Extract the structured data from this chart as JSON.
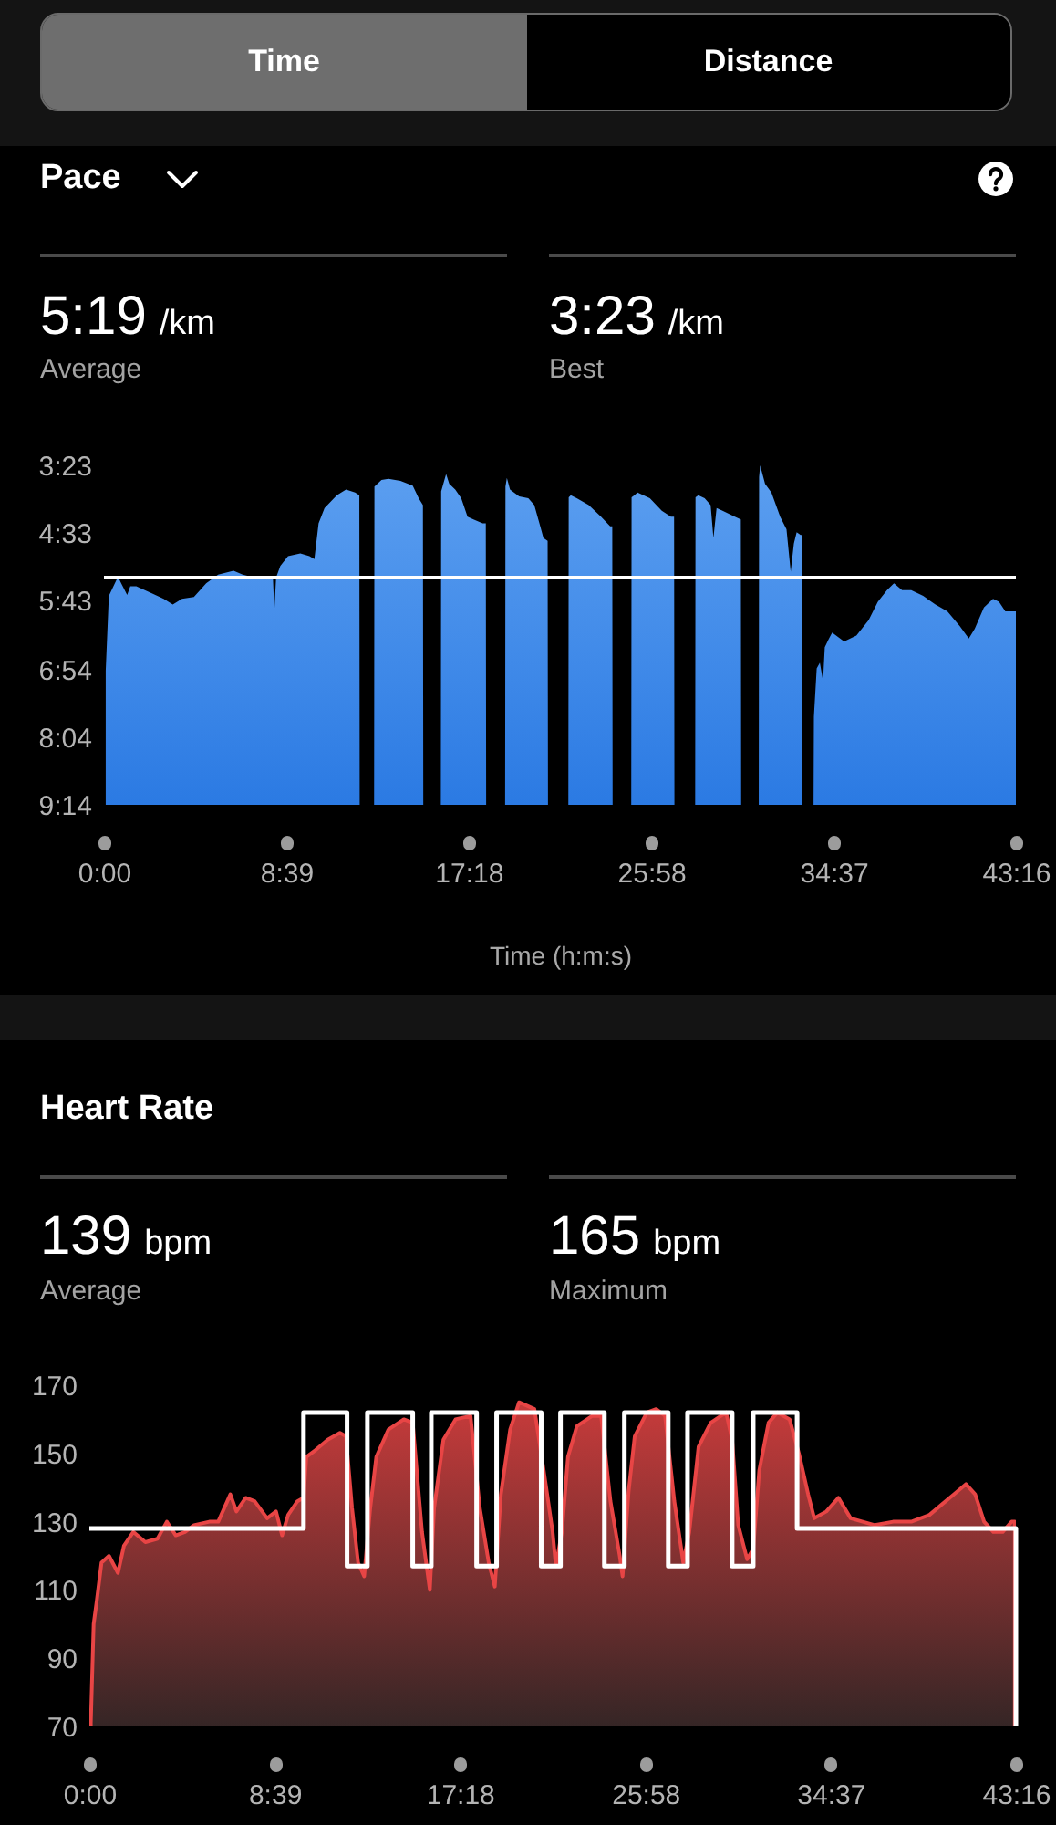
{
  "chart_data": [
    {
      "type": "other",
      "annotations": [
        "Time",
        "Distance"
      ]
    },
    {
      "type": "area",
      "title": "Pace",
      "xlabel": "Time (h:m:s)",
      "annotations": [
        "5:19",
        "/km",
        "Average",
        "3:23",
        "/km",
        "Best"
      ],
      "x": [
        5,
        5,
        14,
        40,
        49,
        66,
        75,
        92,
        135,
        170,
        196,
        222,
        256,
        291,
        325,
        369,
        395,
        429,
        464,
        481,
        485,
        490,
        502,
        524,
        559,
        585,
        599,
        611,
        628,
        663,
        689,
        715,
        727,
        728,
        769,
        770,
        790,
        810,
        844,
        879,
        896,
        908,
        909,
        959,
        960,
        974,
        983,
        1000,
        1017,
        1035,
        1052,
        1078,
        1087,
        1088,
        1142,
        1143,
        1147,
        1156,
        1182,
        1208,
        1225,
        1242,
        1251,
        1263,
        1264,
        1322,
        1323,
        1329,
        1346,
        1380,
        1415,
        1441,
        1447,
        1448,
        1501,
        1502,
        1510,
        1519,
        1554,
        1588,
        1614,
        1623,
        1624,
        1683,
        1684,
        1692,
        1710,
        1727,
        1735,
        1744,
        1761,
        1796,
        1813,
        1814,
        1864,
        1865,
        1868,
        1882,
        1900,
        1925,
        1943,
        1955,
        1964,
        1972,
        1983,
        1986,
        1987,
        2020,
        2021,
        2029,
        2038,
        2047,
        2052,
        2064,
        2073,
        2107,
        2142,
        2177,
        2203,
        2229,
        2249,
        2272,
        2298,
        2332,
        2367,
        2401,
        2436,
        2462,
        2479,
        2505,
        2531,
        2548,
        2566,
        2596,
        2596
      ],
      "values": [
        554,
        415,
        338,
        318,
        325,
        337,
        328,
        328,
        335,
        341,
        347,
        341,
        339,
        325,
        316,
        312,
        316,
        319,
        318,
        319,
        354,
        319,
        307,
        297,
        294,
        297,
        300,
        263,
        247,
        234,
        228,
        231,
        234,
        554,
        554,
        225,
        218,
        217,
        219,
        224,
        237,
        244,
        554,
        554,
        230,
        212,
        222,
        228,
        237,
        256,
        259,
        263,
        263,
        554,
        554,
        225,
        216,
        228,
        235,
        237,
        244,
        266,
        278,
        281,
        554,
        554,
        236,
        234,
        237,
        244,
        256,
        266,
        266,
        554,
        554,
        236,
        234,
        231,
        237,
        250,
        256,
        256,
        554,
        554,
        236,
        234,
        237,
        244,
        278,
        247,
        250,
        256,
        259,
        554,
        554,
        215,
        203,
        222,
        231,
        256,
        269,
        313,
        284,
        272,
        275,
        275,
        554,
        554,
        463,
        413,
        407,
        426,
        391,
        382,
        376,
        385,
        379,
        363,
        344,
        332,
        325,
        332,
        332,
        338,
        347,
        354,
        369,
        382,
        372,
        350,
        341,
        344,
        354,
        354,
        554
      ],
      "color": "#3d8ded",
      "xlim": [
        0,
        2596
      ],
      "ylim": [
        554,
        203
      ],
      "xticks": [
        {
          "value": 0,
          "label": "0:00"
        },
        {
          "value": 519,
          "label": "8:39"
        },
        {
          "value": 1038,
          "label": "17:18"
        },
        {
          "value": 1558,
          "label": "25:58"
        },
        {
          "value": 2077,
          "label": "34:37"
        },
        {
          "value": 2596,
          "label": "43:16"
        }
      ],
      "yticks": [
        {
          "value": 203,
          "label": "3:23"
        },
        {
          "value": 273,
          "label": "4:33"
        },
        {
          "value": 343,
          "label": "5:43"
        },
        {
          "value": 414,
          "label": "6:54"
        },
        {
          "value": 484,
          "label": "8:04"
        },
        {
          "value": 554,
          "label": "9:14"
        }
      ],
      "ref_lines": [
        {
          "axis": "y",
          "value": 319,
          "color": "#ffffff"
        }
      ],
      "grid": false
    },
    {
      "type": "area",
      "title": "Heart Rate",
      "annotations": [
        "139",
        "bpm",
        "Average",
        "165",
        "bpm",
        "Maximum"
      ],
      "series": [
        {
          "type": "area",
          "color": "#e84545",
          "x": [
            4,
            12,
            21,
            34,
            55,
            80,
            97,
            123,
            157,
            191,
            217,
            242,
            268,
            293,
            336,
            361,
            395,
            412,
            438,
            463,
            498,
            523,
            540,
            557,
            583,
            600,
            608,
            634,
            668,
            702,
            719,
            736,
            753,
            770,
            787,
            804,
            838,
            881,
            906,
            932,
            954,
            966,
            992,
            1026,
            1068,
            1094,
            1119,
            1136,
            1153,
            1179,
            1204,
            1247,
            1273,
            1298,
            1307,
            1324,
            1341,
            1366,
            1409,
            1434,
            1460,
            1486,
            1494,
            1511,
            1528,
            1562,
            1588,
            1613,
            1639,
            1664,
            1681,
            1707,
            1741,
            1784,
            1801,
            1818,
            1843,
            1860,
            1877,
            1903,
            1928,
            1962,
            1988,
            2014,
            2031,
            2065,
            2099,
            2133,
            2167,
            2201,
            2252,
            2303,
            2354,
            2388,
            2422,
            2456,
            2482,
            2507,
            2533,
            2559,
            2584,
            2593
          ],
          "values": [
            71,
            100,
            107,
            118,
            120,
            115,
            123,
            127,
            124,
            125,
            130,
            126,
            127,
            129,
            130,
            130,
            138,
            133,
            137,
            136,
            131,
            133,
            126,
            132,
            136,
            137,
            149,
            151,
            154,
            156,
            155,
            134,
            118,
            114,
            134,
            149,
            157,
            160,
            159,
            127,
            110,
            134,
            154,
            160,
            161,
            134,
            118,
            111,
            138,
            157,
            165,
            163,
            145,
            127,
            117,
            127,
            149,
            158,
            161,
            161,
            136,
            120,
            114,
            139,
            155,
            162,
            163,
            161,
            136,
            118,
            127,
            152,
            159,
            162,
            154,
            129,
            119,
            122,
            145,
            159,
            162,
            160,
            150,
            138,
            131,
            133,
            137,
            131,
            130,
            129,
            130,
            130,
            132,
            135,
            138,
            141,
            138,
            130,
            127,
            127,
            130,
            130
          ]
        },
        {
          "type": "step",
          "color": "#ffffff",
          "x": [
            0,
            600,
            722,
            779,
            906,
            958,
            1085,
            1141,
            1266,
            1320,
            1443,
            1499,
            1622,
            1676,
            1801,
            1860,
            1983,
            2596
          ],
          "values": [
            128,
            162,
            117,
            162,
            117,
            162,
            117,
            162,
            117,
            162,
            117,
            162,
            117,
            162,
            117,
            162,
            128,
            70
          ]
        }
      ],
      "xlim": [
        0,
        2596
      ],
      "ylim": [
        70,
        170
      ],
      "xticks": [
        {
          "value": 0,
          "label": "0:00"
        },
        {
          "value": 519,
          "label": "8:39"
        },
        {
          "value": 1038,
          "label": "17:18"
        },
        {
          "value": 1558,
          "label": "25:58"
        },
        {
          "value": 2077,
          "label": "34:37"
        },
        {
          "value": 2596,
          "label": "43:16"
        }
      ],
      "yticks": [
        70,
        90,
        110,
        130,
        150,
        170
      ],
      "grid": false
    }
  ]
}
